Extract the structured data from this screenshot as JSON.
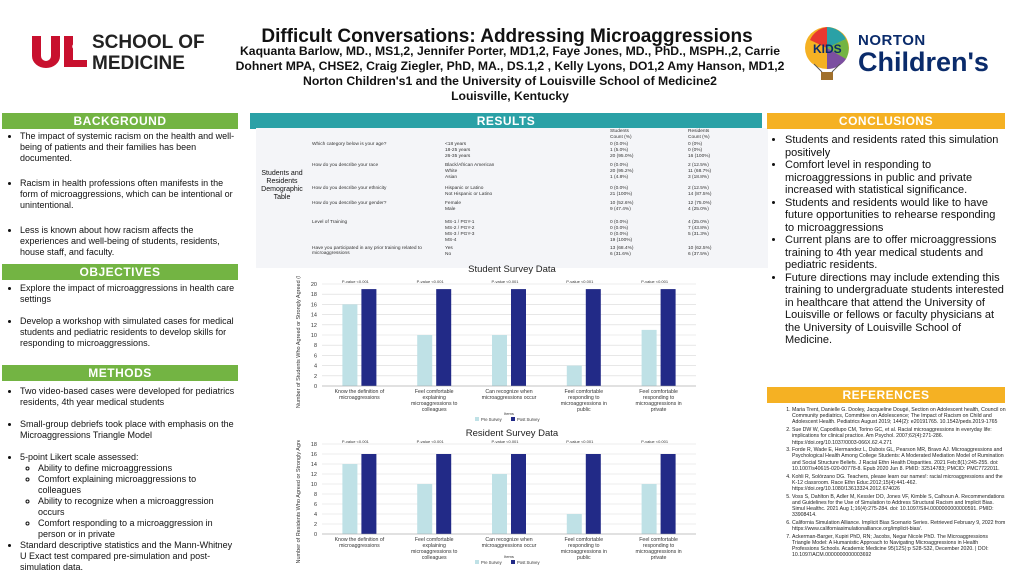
{
  "header": {
    "title": "Difficult Conversations: Addressing Microaggressions",
    "authors_line1": "Kaquanta Barlow, MD., MS1,2, Jennifer Porter, MD1,2, Faye Jones, MD., PhD., MSPH.,2, Carrie",
    "authors_line2": "Dohnert MPA, CHSE2, Craig Ziegler, PhD, MA., DS.1,2 , Kelly Lyons, DO1,2 Amy Hanson, MD1,2",
    "affiliation": "Norton Children's1 and the University of Louisville School of Medicine2",
    "location": "Louisville, Kentucky"
  },
  "logos": {
    "ul_mark": "UL",
    "ul_of": "OF",
    "school_line1": "SCHOOL OF",
    "school_line2": "MEDICINE",
    "norton_line1": "NORTON",
    "norton_line2": "Children's"
  },
  "colors": {
    "green": "#73b443",
    "teal": "#2aa1a6",
    "orange": "#f5b123",
    "pre_bar": "#bfe1e6",
    "post_bar": "#222a87"
  },
  "background": {
    "heading": "BACKGROUND",
    "items": [
      "The impact of systemic racism on the health and well-being of patients and their families has been documented.",
      "Racism in health professions often manifests in the form of microaggressions, which can be intentional or unintentional.",
      "Less is known about how racism affects the experiences and well-being of students, residents, house staff, and faculty."
    ]
  },
  "objectives": {
    "heading": "OBJECTIVES",
    "items": [
      "Explore the impact of microaggressions in health care settings",
      "Develop a workshop with simulated cases for medical students and pediatric residents to develop skills for responding to microaggressions."
    ]
  },
  "methods": {
    "heading": "METHODS",
    "items": [
      "Two video-based cases were developed for pediatrics residents, 4th year medical students",
      "Small-group debriefs took place with emphasis on the Microaggressions Triangle Model",
      "5-point Likert scale assessed:"
    ],
    "sub_items": [
      "Ability to define microaggressions",
      "Comfort explaining microaggressions to colleagues",
      "Ability to recognize when a microaggression occurs",
      "Comfort responding to a microaggression in person or in private"
    ],
    "last_item": "Standard descriptive statistics and the Mann-Whitney U Exact test compared pre-simulation and post-simulation data."
  },
  "results": {
    "heading": "RESULTS",
    "table_label": "Students and Residents Demographic Table",
    "col_students": "Students",
    "col_residents": "Residents",
    "col_count": "Count (%)",
    "rows": [
      {
        "q": "Which category below is your age?",
        "opts": [
          "<18 years",
          "18-25 years",
          "26-35 years"
        ],
        "s": [
          "0 (0.0%)",
          "1 (5.0%)",
          "20 (95.0%)"
        ],
        "r": [
          "0 (0%)",
          "0 (0%)",
          "16 (100%)"
        ]
      },
      {
        "q": "How do you describe your race",
        "opts": [
          "Black/African American",
          "White",
          "Asian"
        ],
        "s": [
          "0 (0.0%)",
          "20 (95.2%)",
          "1 (4.8%)"
        ],
        "r": [
          "2 (12.5%)",
          "11 (68.7%)",
          "3 (18.8%)"
        ]
      },
      {
        "q": "How do you describe your ethnicity",
        "opts": [
          "Hispanic or Latino",
          "Not Hispanic or Latino"
        ],
        "s": [
          "0 (0.0%)",
          "21 (100%)"
        ],
        "r": [
          "2 (12.5%)",
          "14 (87.5%)"
        ]
      },
      {
        "q": "How do you describe your gender?",
        "opts": [
          "Female",
          "Male"
        ],
        "s": [
          "10 (52.6%)",
          "9 (47.4%)"
        ],
        "r": [
          "12 (75.0%)",
          "4 (25.0%)"
        ]
      },
      {
        "q": "Level of Training",
        "opts": [
          "MS-1 / PGY-1",
          "MS-2 / PGY-2",
          "MS-3 / PGY-3",
          "MS-4"
        ],
        "s": [
          "0 (0.0%)",
          "0 (0.0%)",
          "0 (0.0%)",
          "19 (100%)"
        ],
        "r": [
          "4 (25.0%)",
          "7 (43.8%)",
          "5 (31.3%)",
          ""
        ]
      },
      {
        "q": "Have you participated in any prior training related to microaggressions",
        "opts": [
          "Yes",
          "No"
        ],
        "s": [
          "13 (68.4%)",
          "6 (31.6%)"
        ],
        "r": [
          "10 (62.5%)",
          "6 (37.5%)"
        ]
      }
    ]
  },
  "chart_data": [
    {
      "type": "bar",
      "title": "Student Survey Data",
      "ylabel": "Number of Students Who Agreed or Strongly Agreed (N=19)",
      "xlabel": "Items",
      "ylim": [
        0,
        20
      ],
      "yticks": [
        0,
        2,
        4,
        6,
        8,
        10,
        12,
        14,
        16,
        18,
        20
      ],
      "categories": [
        "Know the definition of microaggressions",
        "Feel comfortable explaining microaggressions to colleagues",
        "Can recognize when microaggressions occur",
        "Feel comfortable responding to microaggressions in public",
        "Feel comfortable responding to microaggressions in private"
      ],
      "pvalues": [
        "P-value <0.001",
        "P-value <0.001",
        "P-value <0.001",
        "P-value <0.001",
        "P-value <0.001"
      ],
      "series": [
        {
          "name": "Pre Survey",
          "values": [
            16,
            10,
            10,
            4,
            11
          ]
        },
        {
          "name": "Post Survey",
          "values": [
            19,
            19,
            19,
            19,
            19
          ]
        }
      ],
      "legend": "bottom"
    },
    {
      "type": "bar",
      "title": "Resident Survey Data",
      "ylabel": "Number of Residents Who Agreed or Strongly Agreed (N=16)",
      "xlabel": "Items",
      "ylim": [
        0,
        18
      ],
      "yticks": [
        0,
        2,
        4,
        6,
        8,
        10,
        12,
        14,
        16,
        18
      ],
      "categories": [
        "Know the definition of microaggressions",
        "Feel comfortable explaining microaggressions to colleagues",
        "Can recognize when microaggressions occur",
        "Feel comfortable responding to microaggressions in public",
        "Feel comfortable responding to microaggressions in private"
      ],
      "pvalues": [
        "P-value <0.001",
        "P-value <0.001",
        "P-value <0.001",
        "P-value <0.001",
        "P-value <0.001"
      ],
      "series": [
        {
          "name": "Pre Survey",
          "values": [
            14,
            10,
            12,
            4,
            10
          ]
        },
        {
          "name": "Post Survey",
          "values": [
            16,
            16,
            16,
            16,
            16
          ]
        }
      ],
      "legend": "bottom"
    }
  ],
  "conclusions": {
    "heading": "CONCLUSIONS",
    "items": [
      "Students and residents rated this simulation positively",
      "Comfort level in responding to microaggressions in public and private increased with statistical significance.",
      "Students and residents would like to have future opportunities to rehearse responding to microaggressions",
      "Current plans are to offer microaggressions training to 4th year medical students and pediatric residents.",
      "Future directions may include extending this training to undergraduate students interested in healthcare that attend the University of Louisville or fellows or faculty physicians at the University of Louisville School of Medicine."
    ]
  },
  "references": {
    "heading": "REFERENCES",
    "items": [
      "Maria Trent, Danielle G. Dooley, Jacqueline Dougé, Section on Adolescent health, Council on Community pediatrics, Committee on Adolescence; The Impact of Racism on Child and Adolescent Health. Pediatrics August 2019; 144(2): e20191765. 10.1542/peds.2019-1765",
      "Sue DW W, Capodilupo CM, Torino GC, et al. Racial microaggressions in everyday life: implications for clinical practice. Am Psychol. 2007;62(4):271-286. https://doi.org/10.1037/0003-066X.62.4.271",
      "Forde R, Wade E, Hermandez L, Dubois GL, Pearson MR, Bravo AJ. Microaggressions and Psychological Health Among College Students: A Moderated Mediation Model of Rumination and Social Structure Beliefs. J Racial Ethn Health Disparities. 2021 Feb;8(1):245-255. doi: 10.1007/s40615-020-00778-8. Epub 2020 Jun 8. PMID: 32514783; PMCID: PMC7722011.",
      "Kohli R, Solórzano DG. Teachers, please learn our names!: racial microaggressions and the K-12 classroom. Race Ethn Educ.2012;15(4):441-462. https://doi.org/10.1080/13613324.2012.674026",
      "Voss S, Dahlton B, Adler M, Kessler DO, Jones VF, Kimble S, Calhoun A. Recommendations and Guidelines for the Use of Simulation to Address Structural Racism and Implicit Bias. Simul Healthc. 2021 Aug 1;16(4):275-284. doi: 10.1097/SIH.0000000000000591. PMID: 33908414.",
      "California Simulation Alliance. Implicit Bias Scenario Series. Retrieved February 9, 2022 from https://www.californiasimulationalliance.org/implicit-bias/.",
      "Ackerman-Barger, Kupiri PhD, RN; Jacobs, Negar Nicole PhD. The Microaggressions Triangle Model: A Humanistic Approach to Navigating Microaggressions in Health Professions Schools. Academic Medicine 95(12S):p S28-S32, December 2020. | DOI: 10.1097/ACM.0000000000003692"
    ]
  }
}
